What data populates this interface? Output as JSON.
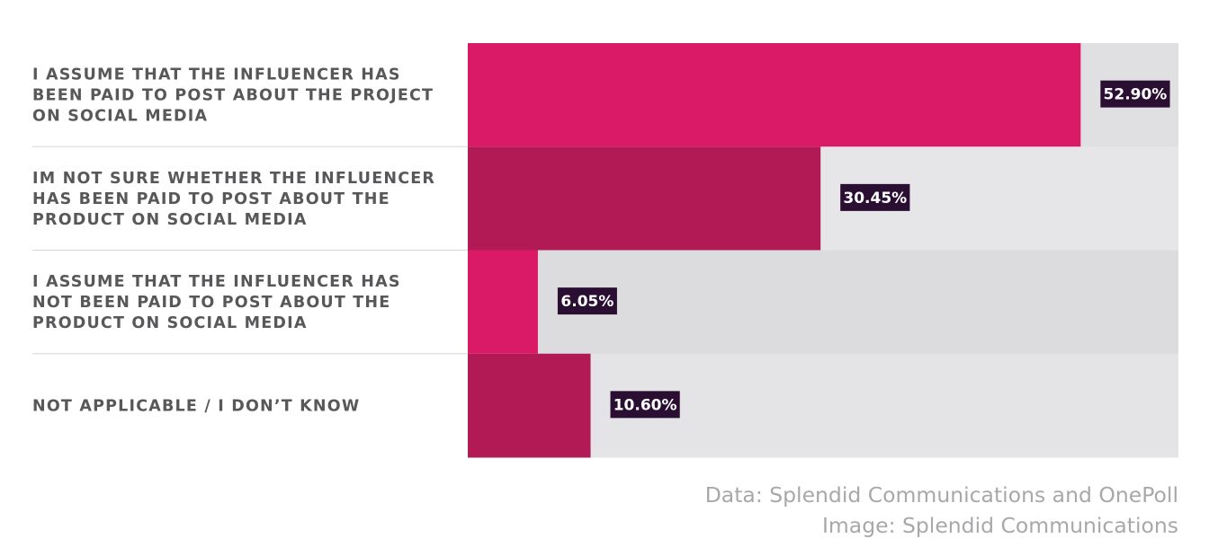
{
  "chart_data": {
    "type": "bar",
    "orientation": "horizontal",
    "title": "",
    "xlabel": "",
    "ylabel": "",
    "xlim": [
      0,
      100
    ],
    "grid": false,
    "legend": "none",
    "categories": [
      "I ASSUME THAT THE INFLUENCER HAS BEEN PAID TO POST ABOUT THE PROJECT ON SOCIAL MEDIA",
      "IM NOT SURE WHETHER THE INFLUENCER HAS BEEN PAID TO POST ABOUT THE PRODUCT ON SOCIAL MEDIA",
      "I ASSUME THAT THE INFLUENCER HAS NOT BEEN PAID TO POST ABOUT THE PRODUCT ON SOCIAL MEDIA",
      "NOT APPLICABLE / I DON’T KNOW"
    ],
    "category_lines": [
      [
        "I ASSUME THAT THE INFLUENCER HAS",
        "BEEN PAID TO POST ABOUT THE PROJECT",
        "ON SOCIAL MEDIA"
      ],
      [
        "IM NOT SURE WHETHER THE INFLUENCER",
        "HAS BEEN PAID TO POST ABOUT THE",
        "PRODUCT ON SOCIAL MEDIA"
      ],
      [
        "I ASSUME THAT THE INFLUENCER HAS",
        "NOT BEEN PAID TO POST ABOUT THE",
        "PRODUCT ON SOCIAL MEDIA"
      ],
      [
        "NOT APPLICABLE / I DON’T KNOW"
      ]
    ],
    "values": [
      52.9,
      30.45,
      6.05,
      10.6
    ],
    "value_labels": [
      "52.90%",
      "30.45%",
      "6.05%",
      "10.60%"
    ],
    "bar_colors": [
      "#da1a67",
      "#b11a55",
      "#da1a67",
      "#b11a55"
    ],
    "track_colors": [
      "#e0e0e2",
      "#e6e6e8",
      "#dcdcde",
      "#e4e4e6"
    ],
    "label_box_color": "#2a0f33",
    "label_text_color": "#ffffff",
    "category_text_color": "#58585a",
    "divider_color": "#d5d5d5"
  },
  "source": {
    "line1": "Data: Splendid Communications and OnePoll",
    "line2": "Image: Splendid Communications"
  }
}
